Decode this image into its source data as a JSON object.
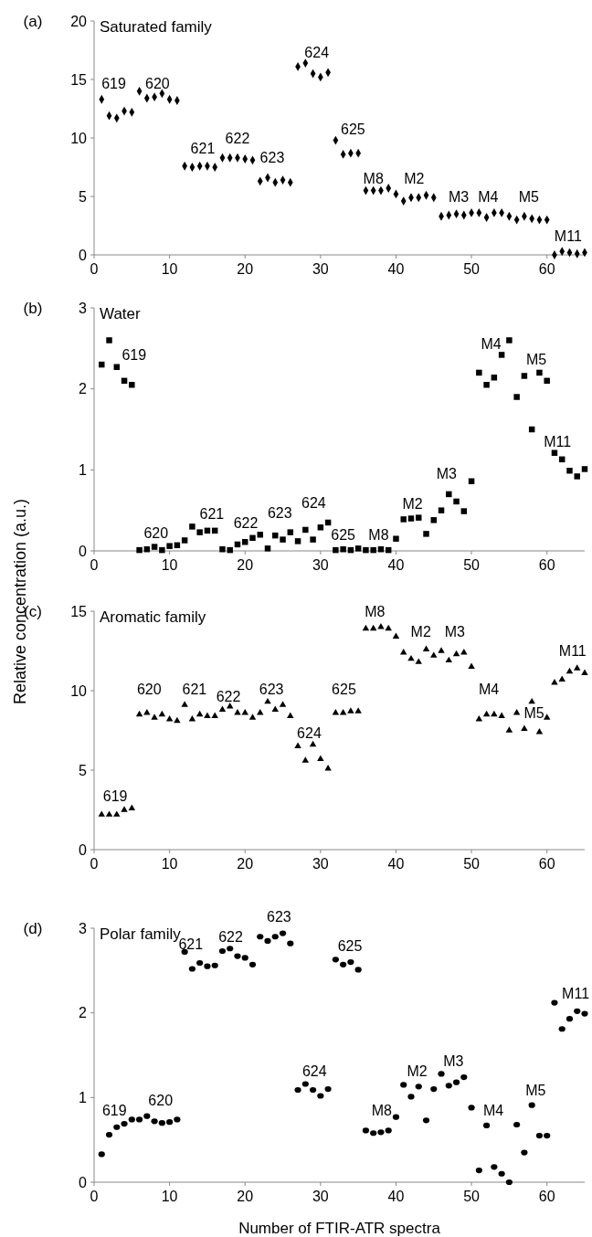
{
  "chart_data": [
    {
      "type": "scatter",
      "title": "Saturated family",
      "marker": "diamond",
      "color": "#000000",
      "xlim": [
        0,
        65
      ],
      "xticks": [
        0,
        10,
        20,
        30,
        40,
        50,
        60
      ],
      "ylim": [
        0,
        20
      ],
      "yticks": [
        0,
        5,
        10,
        15,
        20
      ],
      "x": [
        1,
        2,
        3,
        4,
        5,
        6,
        7,
        8,
        9,
        10,
        11,
        12,
        13,
        14,
        15,
        16,
        17,
        18,
        19,
        20,
        21,
        22,
        23,
        24,
        25,
        26,
        27,
        28,
        29,
        30,
        31,
        32,
        33,
        34,
        35,
        36,
        37,
        38,
        39,
        40,
        41,
        42,
        43,
        44,
        45,
        46,
        47,
        48,
        49,
        50,
        51,
        52,
        53,
        54,
        55,
        56,
        57,
        58,
        59,
        60,
        61,
        62,
        63,
        64,
        65
      ],
      "values": [
        13.3,
        11.9,
        11.7,
        12.3,
        12.2,
        14.0,
        13.4,
        13.5,
        13.8,
        13.3,
        13.2,
        7.6,
        7.5,
        7.6,
        7.6,
        7.5,
        8.3,
        8.3,
        8.3,
        8.2,
        8.1,
        6.3,
        6.6,
        6.2,
        6.4,
        6.2,
        16.1,
        16.4,
        15.5,
        15.2,
        15.6,
        9.8,
        8.6,
        8.7,
        8.7,
        5.5,
        5.5,
        5.5,
        5.7,
        5.2,
        4.6,
        4.9,
        4.9,
        5.1,
        4.9,
        3.3,
        3.4,
        3.5,
        3.4,
        3.6,
        3.6,
        3.2,
        3.6,
        3.6,
        3.3,
        3.0,
        3.3,
        3.1,
        3.0,
        3.0,
        0.0,
        0.3,
        0.2,
        0.1,
        0.2
      ],
      "annotations": [
        "(a)",
        "619",
        "620",
        "621",
        "622",
        "623",
        "624",
        "625",
        "M8",
        "M2",
        "M3",
        "M4",
        "M5",
        "M11"
      ]
    },
    {
      "type": "scatter",
      "title": "Water",
      "ylabel": "Relative concentration (a.u.)",
      "marker": "square",
      "color": "#000000",
      "xlim": [
        0,
        65
      ],
      "xticks": [
        0,
        10,
        20,
        30,
        40,
        50,
        60
      ],
      "ylim": [
        0,
        3
      ],
      "yticks": [
        0,
        1,
        2,
        3
      ],
      "x": [
        1,
        2,
        3,
        4,
        5,
        6,
        7,
        8,
        9,
        10,
        11,
        12,
        13,
        14,
        15,
        16,
        17,
        18,
        19,
        20,
        21,
        22,
        23,
        24,
        25,
        26,
        27,
        28,
        29,
        30,
        31,
        32,
        33,
        34,
        35,
        36,
        37,
        38,
        39,
        40,
        41,
        42,
        43,
        44,
        45,
        46,
        47,
        48,
        49,
        50,
        51,
        52,
        53,
        54,
        55,
        56,
        57,
        58,
        59,
        60,
        61,
        62,
        63,
        64,
        65
      ],
      "values": [
        2.3,
        2.6,
        2.27,
        2.1,
        2.05,
        0.01,
        0.02,
        0.05,
        0.01,
        0.06,
        0.07,
        0.13,
        0.3,
        0.23,
        0.25,
        0.25,
        0.02,
        0.01,
        0.08,
        0.11,
        0.16,
        0.2,
        0.03,
        0.19,
        0.14,
        0.23,
        0.12,
        0.26,
        0.14,
        0.29,
        0.35,
        0.01,
        0.02,
        0.01,
        0.03,
        0.01,
        0.01,
        0.02,
        0.01,
        0.15,
        0.39,
        0.4,
        0.41,
        0.21,
        0.38,
        0.5,
        0.7,
        0.61,
        0.49,
        0.86,
        2.2,
        2.05,
        2.14,
        2.42,
        2.6,
        1.9,
        2.16,
        1.5,
        2.2,
        2.1,
        1.21,
        1.13,
        0.99,
        0.92,
        1.01
      ],
      "annotations": [
        "(b)",
        "619",
        "620",
        "621",
        "622",
        "623",
        "624",
        "625",
        "M8",
        "M2",
        "M3",
        "M4",
        "M5",
        "M11"
      ]
    },
    {
      "type": "scatter",
      "title": "Aromatic family",
      "marker": "triangle",
      "color": "#000000",
      "xlim": [
        0,
        65
      ],
      "xticks": [
        0,
        10,
        20,
        30,
        40,
        50,
        60
      ],
      "ylim": [
        0,
        15
      ],
      "yticks": [
        0,
        5,
        10,
        15
      ],
      "x": [
        1,
        2,
        3,
        4,
        5,
        6,
        7,
        8,
        9,
        10,
        11,
        12,
        13,
        14,
        15,
        16,
        17,
        18,
        19,
        20,
        21,
        22,
        23,
        24,
        25,
        26,
        27,
        28,
        29,
        30,
        31,
        32,
        33,
        34,
        35,
        36,
        37,
        38,
        39,
        40,
        41,
        42,
        43,
        44,
        45,
        46,
        47,
        48,
        49,
        50,
        51,
        52,
        53,
        54,
        55,
        56,
        57,
        58,
        59,
        60,
        61,
        62,
        63,
        64,
        65
      ],
      "values": [
        2.2,
        2.2,
        2.2,
        2.5,
        2.6,
        8.5,
        8.6,
        8.3,
        8.5,
        8.2,
        8.1,
        9.1,
        8.2,
        8.5,
        8.4,
        8.4,
        8.8,
        9.0,
        8.6,
        8.6,
        8.3,
        8.6,
        9.3,
        8.8,
        9.1,
        8.4,
        6.5,
        5.6,
        6.6,
        5.7,
        5.1,
        8.6,
        8.6,
        8.7,
        8.7,
        13.9,
        13.9,
        14.0,
        13.9,
        13.4,
        12.4,
        12.0,
        11.8,
        12.6,
        12.2,
        12.5,
        11.9,
        12.3,
        12.4,
        11.5,
        8.2,
        8.5,
        8.5,
        8.4,
        7.5,
        8.6,
        7.6,
        9.3,
        7.4,
        8.3,
        10.5,
        10.7,
        11.2,
        11.4,
        11.1
      ],
      "annotations": [
        "(c)",
        "619",
        "620",
        "621",
        "622",
        "623",
        "624",
        "625",
        "M8",
        "M2",
        "M3",
        "M4",
        "M5",
        "M11"
      ]
    },
    {
      "type": "scatter",
      "title": "Polar family",
      "xlabel": "Number of FTIR-ATR spectra",
      "marker": "circle",
      "color": "#000000",
      "xlim": [
        0,
        65
      ],
      "xticks": [
        0,
        10,
        20,
        30,
        40,
        50,
        60
      ],
      "ylim": [
        0,
        3
      ],
      "yticks": [
        0,
        1,
        2,
        3
      ],
      "x": [
        1,
        2,
        3,
        4,
        5,
        6,
        7,
        8,
        9,
        10,
        11,
        12,
        13,
        14,
        15,
        16,
        17,
        18,
        19,
        20,
        21,
        22,
        23,
        24,
        25,
        26,
        27,
        28,
        29,
        30,
        31,
        32,
        33,
        34,
        35,
        36,
        37,
        38,
        39,
        40,
        41,
        42,
        43,
        44,
        45,
        46,
        47,
        48,
        49,
        50,
        51,
        52,
        53,
        54,
        55,
        56,
        57,
        58,
        59,
        60,
        61,
        62,
        63,
        64,
        65
      ],
      "values": [
        0.33,
        0.56,
        0.65,
        0.69,
        0.74,
        0.74,
        0.78,
        0.72,
        0.7,
        0.71,
        0.74,
        2.72,
        2.52,
        2.59,
        2.55,
        2.56,
        2.73,
        2.76,
        2.67,
        2.65,
        2.57,
        2.9,
        2.85,
        2.9,
        2.94,
        2.82,
        1.09,
        1.16,
        1.09,
        1.02,
        1.1,
        2.63,
        2.57,
        2.6,
        2.51,
        0.61,
        0.58,
        0.59,
        0.61,
        0.77,
        1.15,
        1.01,
        1.13,
        0.73,
        1.1,
        1.28,
        1.14,
        1.18,
        1.24,
        0.88,
        0.14,
        0.67,
        0.18,
        0.1,
        0.0,
        0.68,
        0.35,
        0.91,
        0.55,
        0.55,
        2.12,
        1.81,
        1.93,
        2.02,
        1.99
      ],
      "annotations": [
        "(d)",
        "619",
        "620",
        "621",
        "622",
        "623",
        "624",
        "625",
        "M8",
        "M2",
        "M3",
        "M4",
        "M5",
        "M11"
      ]
    }
  ]
}
